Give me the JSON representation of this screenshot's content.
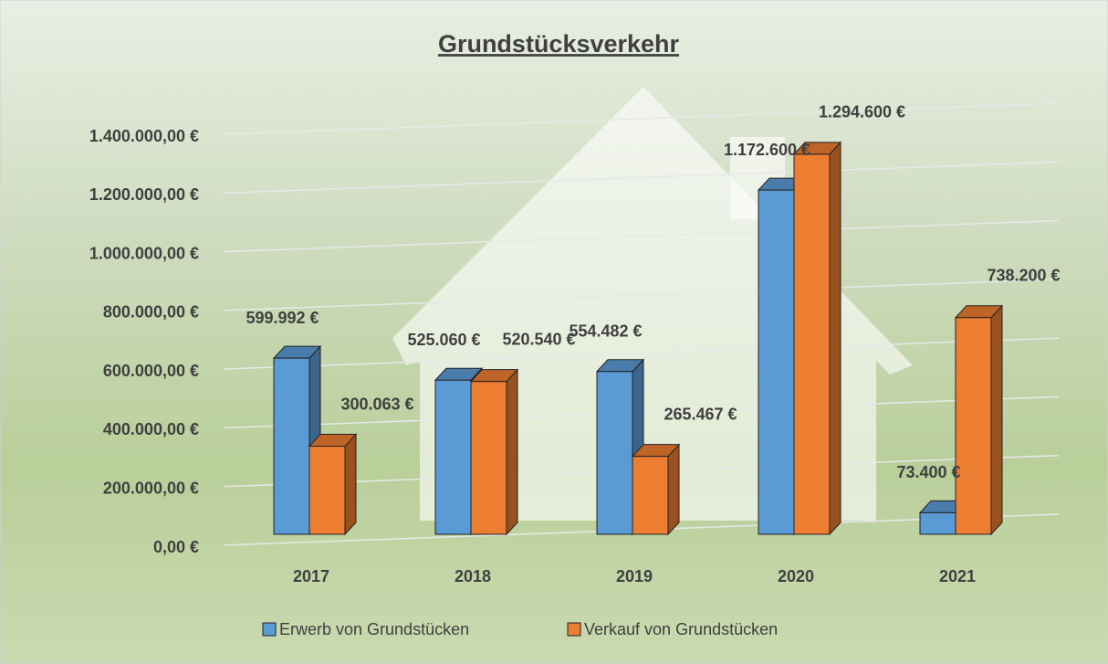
{
  "chart_data": {
    "type": "bar3d",
    "title": "Grundstücksverkehr",
    "categories": [
      "2017",
      "2018",
      "2019",
      "2020",
      "2021"
    ],
    "series": [
      {
        "name": "Erwerb von Grundstücken",
        "color": "#5b9bd5",
        "values": [
          599992,
          525060,
          554482,
          1172600,
          73400
        ],
        "value_labels": [
          "599.992 €",
          "525.060 €",
          "554.482 €",
          "1.172.600 €",
          "73.400 €"
        ]
      },
      {
        "name": "Verkauf von Grundstücken",
        "color": "#ed7d31",
        "values": [
          300063,
          520540,
          265467,
          1294600,
          738200
        ],
        "value_labels": [
          "300.063 €",
          "520.540 €",
          "265.467 €",
          "1.294.600 €",
          "738.200 €"
        ]
      }
    ],
    "ylim": [
      0,
      1400000
    ],
    "yticks": [
      {
        "value": 0,
        "label": "0,00 €"
      },
      {
        "value": 200000,
        "label": "200.000,00 €"
      },
      {
        "value": 400000,
        "label": "400.000,00 €"
      },
      {
        "value": 600000,
        "label": "600.000,00 €"
      },
      {
        "value": 800000,
        "label": "800.000,00 €"
      },
      {
        "value": 1000000,
        "label": "1.000.000,00 €"
      },
      {
        "value": 1200000,
        "label": "1.200.000,00 €"
      },
      {
        "value": 1400000,
        "label": "1.400.000,00 €"
      }
    ],
    "grid": true,
    "legend": "bottom"
  }
}
